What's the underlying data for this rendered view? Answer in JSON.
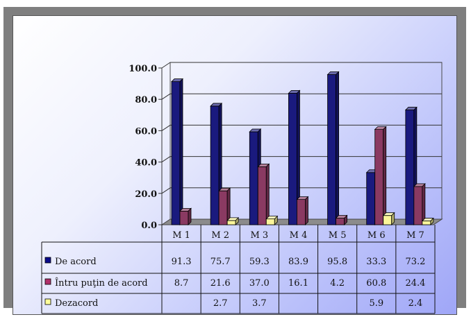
{
  "chart_data": {
    "type": "bar",
    "categories": [
      "M 1",
      "M 2",
      "M 3",
      "M 4",
      "M 5",
      "M 6",
      "M 7"
    ],
    "series": [
      {
        "name": "De acord",
        "values": [
          91.3,
          75.7,
          59.3,
          83.9,
          95.8,
          33.3,
          73.2
        ],
        "color": "#1a1a7e",
        "swatch": "#0a0a8a"
      },
      {
        "name": "Întru puţin de acord",
        "values": [
          8.7,
          21.6,
          37.0,
          16.1,
          4.2,
          60.8,
          24.4
        ],
        "color": "#8a3a62",
        "swatch": "#b0306a"
      },
      {
        "name": "Dezacord",
        "values": [
          null,
          2.7,
          3.7,
          null,
          null,
          5.9,
          2.4
        ],
        "color": "#fbf59a",
        "swatch": "#ffff99"
      }
    ],
    "ylim": [
      0,
      100
    ],
    "yticks": [
      "0.0",
      "20.0",
      "40.0",
      "60.0",
      "80.0",
      "100.0"
    ],
    "grid": true,
    "legend": "data-table-left",
    "display_values": [
      [
        "91.3",
        "75.7",
        "59.3",
        "83.9",
        "95.8",
        "33.3",
        "73.2"
      ],
      [
        "8.7",
        "21.6",
        "37.0",
        "16.1",
        "4.2",
        "60.8",
        "24.4"
      ],
      [
        "",
        "2.7",
        "3.7",
        "",
        "",
        "5.9",
        "2.4"
      ]
    ]
  }
}
